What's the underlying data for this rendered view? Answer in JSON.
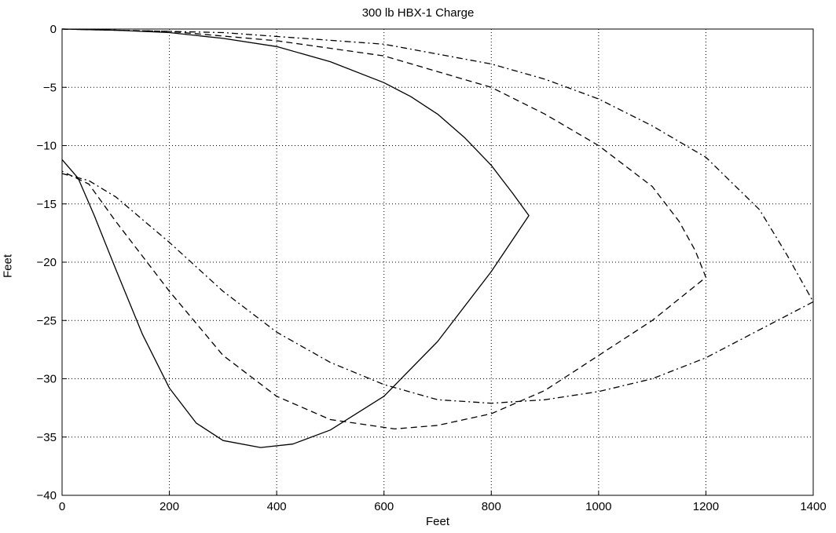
{
  "chart_data": {
    "type": "line",
    "title": "300 lb HBX-1 Charge",
    "xlabel": "Feet",
    "ylabel": "Feet",
    "xlim": [
      0,
      1400
    ],
    "ylim": [
      -40,
      0
    ],
    "xticks": [
      0,
      200,
      400,
      600,
      800,
      1000,
      1200,
      1400
    ],
    "yticks": [
      0,
      -5,
      -10,
      -15,
      -20,
      -25,
      -30,
      -35,
      -40
    ],
    "grid": true,
    "legend": "none",
    "series": [
      {
        "style": "solid",
        "points": [
          [
            0,
            0
          ],
          [
            100,
            -0.1
          ],
          [
            200,
            -0.3
          ],
          [
            300,
            -0.8
          ],
          [
            400,
            -1.5
          ],
          [
            500,
            -2.8
          ],
          [
            600,
            -4.6
          ],
          [
            650,
            -5.8
          ],
          [
            700,
            -7.3
          ],
          [
            750,
            -9.3
          ],
          [
            800,
            -11.7
          ],
          [
            840,
            -14.1
          ],
          [
            870,
            -16
          ],
          [
            800,
            -20.8
          ],
          [
            700,
            -26.8
          ],
          [
            600,
            -31.5
          ],
          [
            500,
            -34.4
          ],
          [
            430,
            -35.6
          ],
          [
            370,
            -35.9
          ],
          [
            300,
            -35.3
          ],
          [
            250,
            -33.8
          ],
          [
            200,
            -30.8
          ],
          [
            150,
            -26.2
          ],
          [
            100,
            -20.6
          ],
          [
            60,
            -16
          ],
          [
            30,
            -12.8
          ],
          [
            0,
            -11.2
          ]
        ]
      },
      {
        "style": "dashed",
        "points": [
          [
            0,
            0
          ],
          [
            200,
            -0.2
          ],
          [
            400,
            -1
          ],
          [
            600,
            -2.3
          ],
          [
            800,
            -5
          ],
          [
            900,
            -7.3
          ],
          [
            1000,
            -10
          ],
          [
            1100,
            -13.5
          ],
          [
            1150,
            -16.5
          ],
          [
            1180,
            -19
          ],
          [
            1200,
            -21.3
          ],
          [
            1100,
            -25
          ],
          [
            1000,
            -28
          ],
          [
            900,
            -31
          ],
          [
            800,
            -33
          ],
          [
            700,
            -34
          ],
          [
            620,
            -34.3
          ],
          [
            500,
            -33.5
          ],
          [
            400,
            -31.5
          ],
          [
            300,
            -28
          ],
          [
            200,
            -22.5
          ],
          [
            100,
            -16.5
          ],
          [
            50,
            -13.3
          ],
          [
            0,
            -12.2
          ]
        ]
      },
      {
        "style": "dashdot",
        "points": [
          [
            0,
            0
          ],
          [
            300,
            -0.3
          ],
          [
            600,
            -1.3
          ],
          [
            800,
            -3
          ],
          [
            900,
            -4.3
          ],
          [
            1000,
            -6
          ],
          [
            1100,
            -8.3
          ],
          [
            1200,
            -11
          ],
          [
            1300,
            -15.5
          ],
          [
            1350,
            -19.3
          ],
          [
            1400,
            -23.4
          ],
          [
            1300,
            -25.8
          ],
          [
            1200,
            -28.2
          ],
          [
            1100,
            -30
          ],
          [
            1000,
            -31.1
          ],
          [
            900,
            -31.8
          ],
          [
            800,
            -32.1
          ],
          [
            700,
            -31.8
          ],
          [
            600,
            -30.5
          ],
          [
            500,
            -28.6
          ],
          [
            400,
            -26
          ],
          [
            300,
            -22.5
          ],
          [
            200,
            -18.3
          ],
          [
            100,
            -14.4
          ],
          [
            50,
            -13
          ],
          [
            0,
            -12.4
          ]
        ]
      }
    ]
  }
}
